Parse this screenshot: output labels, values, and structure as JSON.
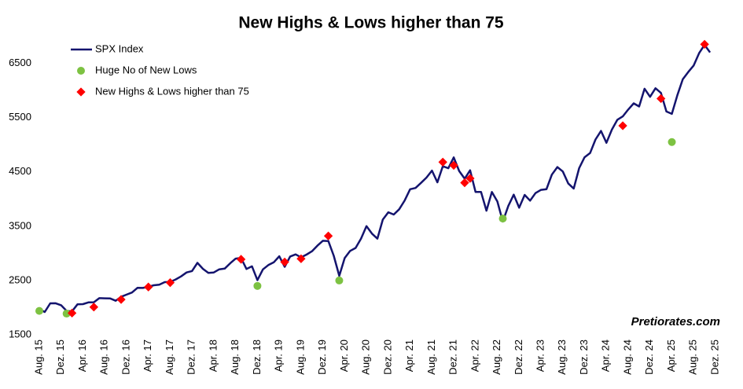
{
  "chart_data": {
    "type": "line",
    "title": "New Highs & Lows higher than 75",
    "watermark": "Pretiorates.com",
    "legend": "upper left",
    "grid": false,
    "ylim": [
      1500,
      7000
    ],
    "yticks": [
      1500,
      2500,
      3500,
      4500,
      5500,
      6500
    ],
    "categories": [
      "Aug. 15",
      null,
      null,
      null,
      "Dez. 15",
      null,
      null,
      null,
      "Apr. 16",
      null,
      null,
      null,
      "Aug. 16",
      null,
      null,
      null,
      "Dez. 16",
      null,
      null,
      null,
      "Apr. 17",
      null,
      null,
      null,
      "Aug. 17",
      null,
      null,
      null,
      "Dez. 17",
      null,
      null,
      null,
      "Apr. 18",
      null,
      null,
      null,
      "Aug. 18",
      null,
      null,
      null,
      "Dez. 18",
      null,
      null,
      null,
      "Apr. 19",
      null,
      null,
      null,
      "Aug. 19",
      null,
      null,
      null,
      "Dez. 19",
      null,
      null,
      null,
      "Apr. 20",
      null,
      null,
      null,
      "Aug. 20",
      null,
      null,
      null,
      "Dez. 20",
      null,
      null,
      null,
      "Apr. 21",
      null,
      null,
      null,
      "Aug. 21",
      null,
      null,
      null,
      "Dez. 21",
      null,
      null,
      null,
      "Apr. 22",
      null,
      null,
      null,
      "Aug. 22",
      null,
      null,
      null,
      "Dez. 22",
      null,
      null,
      null,
      "Apr. 23",
      null,
      null,
      null,
      "Aug. 23",
      null,
      null,
      null,
      "Dez. 23",
      null,
      null,
      null,
      "Apr. 24",
      null,
      null,
      null,
      "Aug. 24",
      null,
      null,
      null,
      "Dez. 24",
      null,
      null,
      null,
      "Apr. 25",
      null,
      null,
      null,
      "Aug. 25",
      null,
      null,
      null,
      "Dez. 25"
    ],
    "series": [
      {
        "name": "SPX Index",
        "color": "#14146e",
        "values": [
          1972,
          1920,
          2079,
          2080,
          2044,
          1940,
          1932,
          2060,
          2065,
          2097,
          2099,
          2174,
          2171,
          2168,
          2126,
          2199,
          2239,
          2279,
          2364,
          2363,
          2384,
          2412,
          2423,
          2470,
          2472,
          2519,
          2575,
          2648,
          2674,
          2824,
          2714,
          2641,
          2648,
          2705,
          2718,
          2816,
          2902,
          2914,
          2712,
          2760,
          2507,
          2704,
          2784,
          2834,
          2946,
          2752,
          2942,
          2980,
          2926,
          2977,
          3038,
          3141,
          3231,
          3226,
          2954,
          2585,
          2912,
          3044,
          3100,
          3271,
          3500,
          3363,
          3270,
          3622,
          3756,
          3714,
          3811,
          3973,
          4181,
          4204,
          4298,
          4395,
          4523,
          4308,
          4605,
          4567,
          4766,
          4516,
          4374,
          4530,
          4132,
          4132,
          3785,
          4130,
          3955,
          3586,
          3872,
          4080,
          3840,
          4077,
          3970,
          4109,
          4169,
          4180,
          4450,
          4589,
          4508,
          4288,
          4194,
          4568,
          4770,
          4846,
          5096,
          5254,
          5036,
          5278,
          5460,
          5522,
          5648,
          5762,
          5705,
          6032,
          5882,
          6041,
          5955,
          5612,
          5569,
          5912,
          6205,
          6339,
          6460,
          6688,
          6840,
          6700,
          null
        ]
      },
      {
        "name": "Huge No of New Lows",
        "color": "#7dc242",
        "marker": "circle",
        "values": [
          1940,
          null,
          null,
          null,
          null,
          1890,
          null,
          null,
          null,
          null,
          null,
          null,
          null,
          null,
          null,
          null,
          null,
          null,
          null,
          null,
          null,
          null,
          null,
          null,
          null,
          null,
          null,
          null,
          null,
          null,
          null,
          null,
          null,
          null,
          null,
          null,
          null,
          null,
          null,
          null,
          2400,
          null,
          null,
          null,
          null,
          null,
          null,
          null,
          null,
          null,
          null,
          null,
          null,
          null,
          null,
          2500,
          null,
          null,
          null,
          null,
          null,
          null,
          null,
          null,
          null,
          null,
          null,
          null,
          null,
          null,
          null,
          null,
          null,
          null,
          null,
          null,
          null,
          null,
          null,
          null,
          null,
          null,
          null,
          null,
          null,
          3640,
          null,
          null,
          null,
          null,
          null,
          null,
          null,
          null,
          null,
          null,
          null,
          null,
          null,
          null,
          null,
          null,
          null,
          null,
          null,
          null,
          null,
          null,
          null,
          null,
          null,
          null,
          null,
          null,
          null,
          null,
          5050,
          null,
          null,
          null,
          null,
          null,
          null,
          null,
          null
        ]
      },
      {
        "name": "New Highs & Lows higher than 75",
        "color": "#ff0000",
        "marker": "diamond",
        "values": [
          null,
          null,
          null,
          null,
          null,
          null,
          1900,
          null,
          null,
          null,
          2010,
          null,
          null,
          null,
          null,
          2150,
          null,
          null,
          null,
          null,
          2380,
          null,
          null,
          null,
          2460,
          null,
          null,
          null,
          null,
          null,
          null,
          null,
          null,
          null,
          null,
          null,
          null,
          2890,
          null,
          null,
          null,
          null,
          null,
          null,
          null,
          2840,
          null,
          null,
          2900,
          null,
          null,
          null,
          null,
          3320,
          null,
          null,
          null,
          null,
          null,
          null,
          null,
          null,
          null,
          null,
          null,
          null,
          null,
          null,
          null,
          null,
          null,
          null,
          null,
          null,
          4680,
          null,
          4620,
          null,
          4300,
          4380,
          null,
          null,
          null,
          null,
          null,
          null,
          null,
          null,
          null,
          null,
          null,
          null,
          null,
          null,
          null,
          null,
          null,
          null,
          null,
          null,
          null,
          null,
          null,
          null,
          null,
          null,
          null,
          5350,
          null,
          null,
          null,
          null,
          null,
          null,
          5850,
          null,
          null,
          null,
          null,
          null,
          null,
          null,
          6850,
          null,
          null
        ]
      }
    ]
  }
}
